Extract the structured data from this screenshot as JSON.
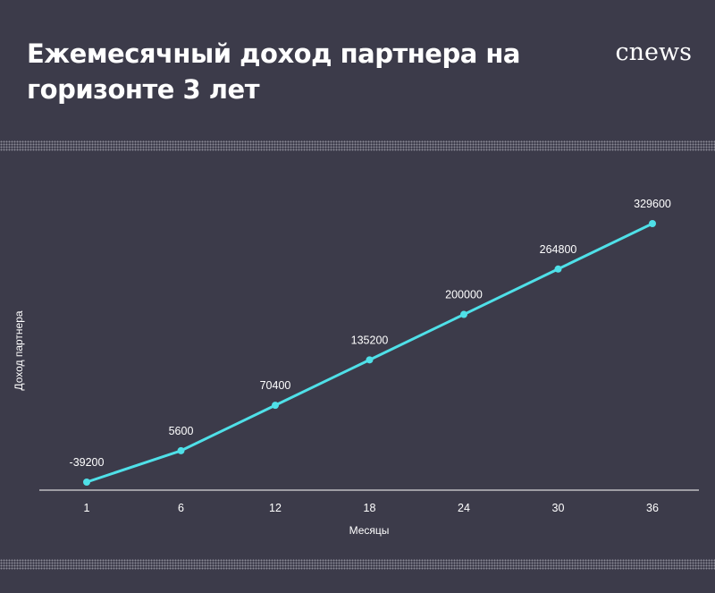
{
  "header": {
    "title": "Ежемесячный доход партнера на горизонте 3 лет",
    "logo_text": "cnews"
  },
  "colors": {
    "background": "#3c3b4a",
    "line": "#4fe0e8",
    "text": "#ffffff",
    "axis": "#ffffff"
  },
  "chart_data": {
    "type": "line",
    "title": "",
    "xlabel": "Месяцы",
    "ylabel": "Доход партнера",
    "categories": [
      "1",
      "6",
      "12",
      "18",
      "24",
      "30",
      "36"
    ],
    "series": [
      {
        "values": [
          -39200,
          5600,
          70400,
          135200,
          200000,
          264800,
          329600
        ]
      }
    ],
    "ylim": [
      -50000,
      400000
    ],
    "grid": false,
    "legend": "none",
    "data_labels": true
  }
}
